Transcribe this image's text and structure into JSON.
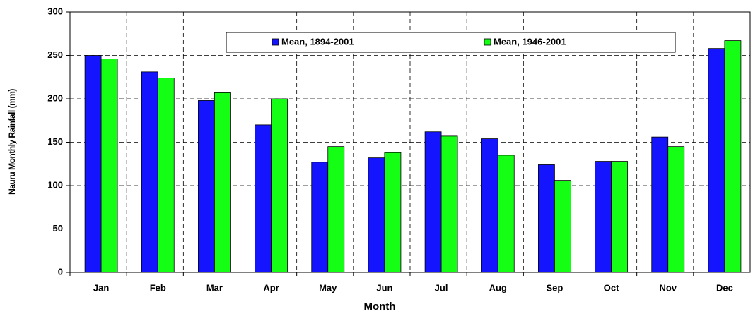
{
  "chart_data": {
    "type": "bar",
    "x_label": "Month",
    "y_label": "Nauru Monthly Rainfall (mm)",
    "categories": [
      "Jan",
      "Feb",
      "Mar",
      "Apr",
      "May",
      "Jun",
      "Jul",
      "Aug",
      "Sep",
      "Oct",
      "Nov",
      "Dec"
    ],
    "series": [
      {
        "name": "Mean, 1894-2001",
        "color": "#1414ff",
        "values": [
          250,
          231,
          198,
          170,
          127,
          132,
          162,
          154,
          124,
          128,
          156,
          258
        ]
      },
      {
        "name": "Mean, 1946-2001",
        "color": "#14ff14",
        "values": [
          246,
          224,
          207,
          200,
          145,
          138,
          157,
          135,
          106,
          128,
          145,
          267
        ]
      }
    ],
    "ylim": [
      0,
      300
    ],
    "yticks": [
      0,
      50,
      100,
      150,
      200,
      250,
      300
    ],
    "grid": true,
    "legend": "upper center"
  }
}
